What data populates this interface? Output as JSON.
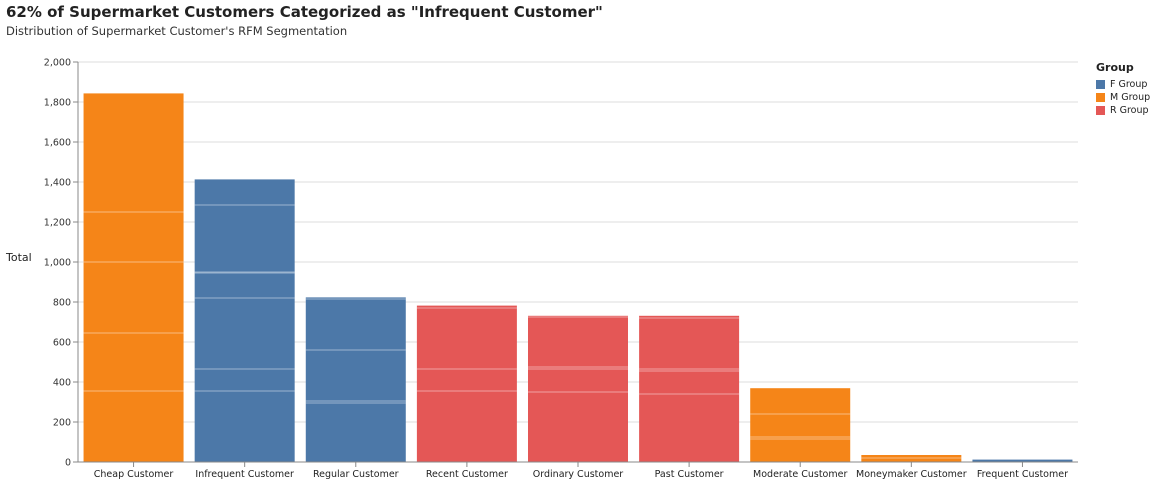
{
  "chart_data": {
    "type": "bar",
    "title": "62% of Supermarket Customers Categorized as \"Infrequent Customer\"",
    "subtitle": "Distribution of Supermarket Customer's RFM Segmentation",
    "ylabel": "Total",
    "xlabel": "",
    "ylim": [
      0,
      2000
    ],
    "yticks": [
      0,
      200,
      400,
      600,
      800,
      1000,
      1200,
      1400,
      1600,
      1800,
      2000
    ],
    "ytick_labels": [
      "0",
      "200",
      "400",
      "600",
      "800",
      "1,000",
      "1,200",
      "1,400",
      "1,600",
      "1,800",
      "2,000"
    ],
    "grid": true,
    "legend": {
      "title": "Group",
      "placement": "top-right",
      "entries": [
        {
          "name": "F Group",
          "color": "#4c78a8"
        },
        {
          "name": "M Group",
          "color": "#f58518"
        },
        {
          "name": "R Group",
          "color": "#e45756"
        }
      ]
    },
    "bars": [
      {
        "category": "Cheap Customer",
        "group": "M Group",
        "value": 1843,
        "stack_breaks": [
          355,
          645,
          1000,
          1250
        ]
      },
      {
        "category": "Infrequent Customer",
        "group": "F Group",
        "value": 1413,
        "stack_breaks": [
          355,
          465,
          820,
          945,
          950,
          1285
        ]
      },
      {
        "category": "Regular Customer",
        "group": "F Group",
        "value": 823,
        "stack_breaks": [
          295,
          305,
          560,
          815
        ]
      },
      {
        "category": "Recent Customer",
        "group": "R Group",
        "value": 782,
        "stack_breaks": [
          355,
          465,
          770
        ]
      },
      {
        "category": "Ordinary Customer",
        "group": "R Group",
        "value": 731,
        "stack_breaks": [
          350,
          465,
          475,
          725
        ]
      },
      {
        "category": "Past Customer",
        "group": "R Group",
        "value": 731,
        "stack_breaks": [
          340,
          455,
          465,
          720
        ]
      },
      {
        "category": "Moderate Customer",
        "group": "M Group",
        "value": 369,
        "stack_breaks": [
          115,
          125,
          240
        ]
      },
      {
        "category": "Moneymaker Customer",
        "group": "M Group",
        "value": 35,
        "stack_breaks": [
          20
        ]
      },
      {
        "category": "Frequent Customer",
        "group": "F Group",
        "value": 12,
        "stack_breaks": []
      }
    ]
  }
}
